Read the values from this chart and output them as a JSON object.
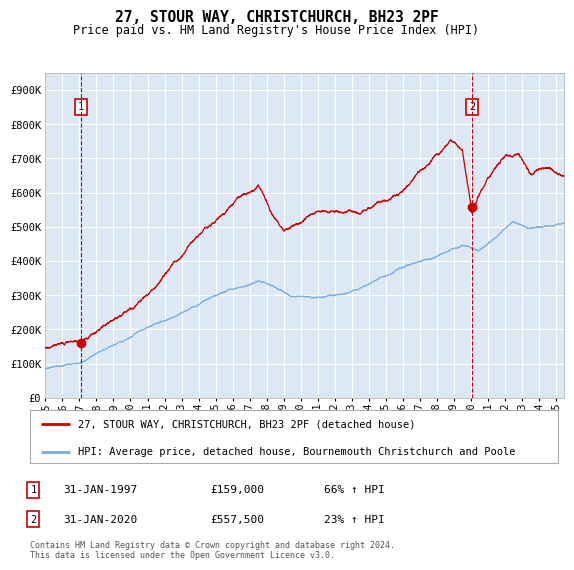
{
  "title": "27, STOUR WAY, CHRISTCHURCH, BH23 2PF",
  "subtitle": "Price paid vs. HM Land Registry's House Price Index (HPI)",
  "background_color": "#ffffff",
  "plot_bg_color": "#dce9f5",
  "red_color": "#cc0000",
  "blue_color": "#7aaddb",
  "marker_color": "#cc0000",
  "vline_color": "#cc0000",
  "grid_color": "#ffffff",
  "sale1_year": 1997.08,
  "sale1_price": 159000,
  "sale1_label": "31-JAN-1997",
  "sale1_pct": "66% ↑ HPI",
  "sale2_year": 2020.08,
  "sale2_price": 557500,
  "sale2_label": "31-JAN-2020",
  "sale2_pct": "23% ↑ HPI",
  "xmin": 1995.0,
  "xmax": 2025.5,
  "ymin": 0,
  "ymax": 950000,
  "ylabel_ticks": [
    0,
    100000,
    200000,
    300000,
    400000,
    500000,
    600000,
    700000,
    800000,
    900000
  ],
  "ylabel_labels": [
    "£0",
    "£100K",
    "£200K",
    "£300K",
    "£400K",
    "£500K",
    "£600K",
    "£700K",
    "£800K",
    "£900K"
  ],
  "legend_property_label": "27, STOUR WAY, CHRISTCHURCH, BH23 2PF (detached house)",
  "legend_hpi_label": "HPI: Average price, detached house, Bournemouth Christchurch and Poole",
  "footer": "Contains HM Land Registry data © Crown copyright and database right 2024.\nThis data is licensed under the Open Government Licence v3.0.",
  "xtick_years": [
    1995,
    1996,
    1997,
    1998,
    1999,
    2000,
    2001,
    2002,
    2003,
    2004,
    2005,
    2006,
    2007,
    2008,
    2009,
    2010,
    2011,
    2012,
    2013,
    2014,
    2015,
    2016,
    2017,
    2018,
    2019,
    2020,
    2021,
    2022,
    2023,
    2024,
    2025
  ]
}
